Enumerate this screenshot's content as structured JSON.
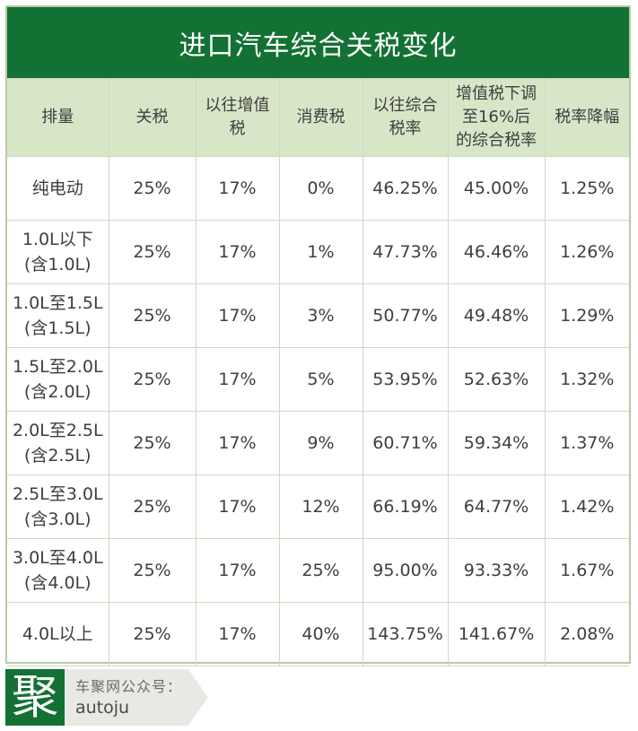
{
  "title": "进口汽车综合关税变化",
  "headers": [
    [
      "排量"
    ],
    [
      "关税"
    ],
    [
      "以往增值",
      "税"
    ],
    [
      "消费税"
    ],
    [
      "以往综合",
      "税率"
    ],
    [
      "增值税下调",
      "至16%后",
      "的综合税率"
    ],
    [
      "税率降幅"
    ]
  ],
  "rows": [
    {
      "cells": [
        [
          "纯电动"
        ],
        [
          "25%"
        ],
        [
          "17%"
        ],
        [
          "0%"
        ],
        [
          "46.25%"
        ],
        [
          "45.00%"
        ],
        [
          "1.25%"
        ]
      ]
    },
    {
      "cells": [
        [
          "1.0L以下",
          "(含1.0L)"
        ],
        [
          "25%"
        ],
        [
          "17%"
        ],
        [
          "1%"
        ],
        [
          "47.73%"
        ],
        [
          "46.46%"
        ],
        [
          "1.26%"
        ]
      ]
    },
    {
      "cells": [
        [
          "1.0L至1.5L",
          "(含1.5L)"
        ],
        [
          "25%"
        ],
        [
          "17%"
        ],
        [
          "3%"
        ],
        [
          "50.77%"
        ],
        [
          "49.48%"
        ],
        [
          "1.29%"
        ]
      ]
    },
    {
      "cells": [
        [
          "1.5L至2.0L",
          "(含2.0L)"
        ],
        [
          "25%"
        ],
        [
          "17%"
        ],
        [
          "5%"
        ],
        [
          "53.95%"
        ],
        [
          "52.63%"
        ],
        [
          "1.32%"
        ]
      ]
    },
    {
      "cells": [
        [
          "2.0L至2.5L",
          "(含2.5L)"
        ],
        [
          "25%"
        ],
        [
          "17%"
        ],
        [
          "9%"
        ],
        [
          "60.71%"
        ],
        [
          "59.34%"
        ],
        [
          "1.37%"
        ]
      ]
    },
    {
      "cells": [
        [
          "2.5L至3.0L",
          "(含3.0L)"
        ],
        [
          "25%"
        ],
        [
          "17%"
        ],
        [
          "12%"
        ],
        [
          "66.19%"
        ],
        [
          "64.77%"
        ],
        [
          "1.42%"
        ]
      ]
    },
    {
      "cells": [
        [
          "3.0L至4.0L",
          "(含4.0L)"
        ],
        [
          "25%"
        ],
        [
          "17%"
        ],
        [
          "25%"
        ],
        [
          "95.00%"
        ],
        [
          "93.33%"
        ],
        [
          "1.67%"
        ]
      ]
    },
    {
      "cells": [
        [
          "4.0L以上"
        ],
        [
          "25%"
        ],
        [
          "17%"
        ],
        [
          "40%"
        ],
        [
          "143.75%"
        ],
        [
          "141.67%"
        ],
        [
          "2.08%"
        ]
      ]
    }
  ],
  "footer": {
    "logo_char": "聚",
    "line1": "车聚网公众号：",
    "line2": "autoju"
  },
  "colors": {
    "title_bg": "#137134",
    "header_bg": "#d8e6c8",
    "border": "#cfd8c4"
  }
}
